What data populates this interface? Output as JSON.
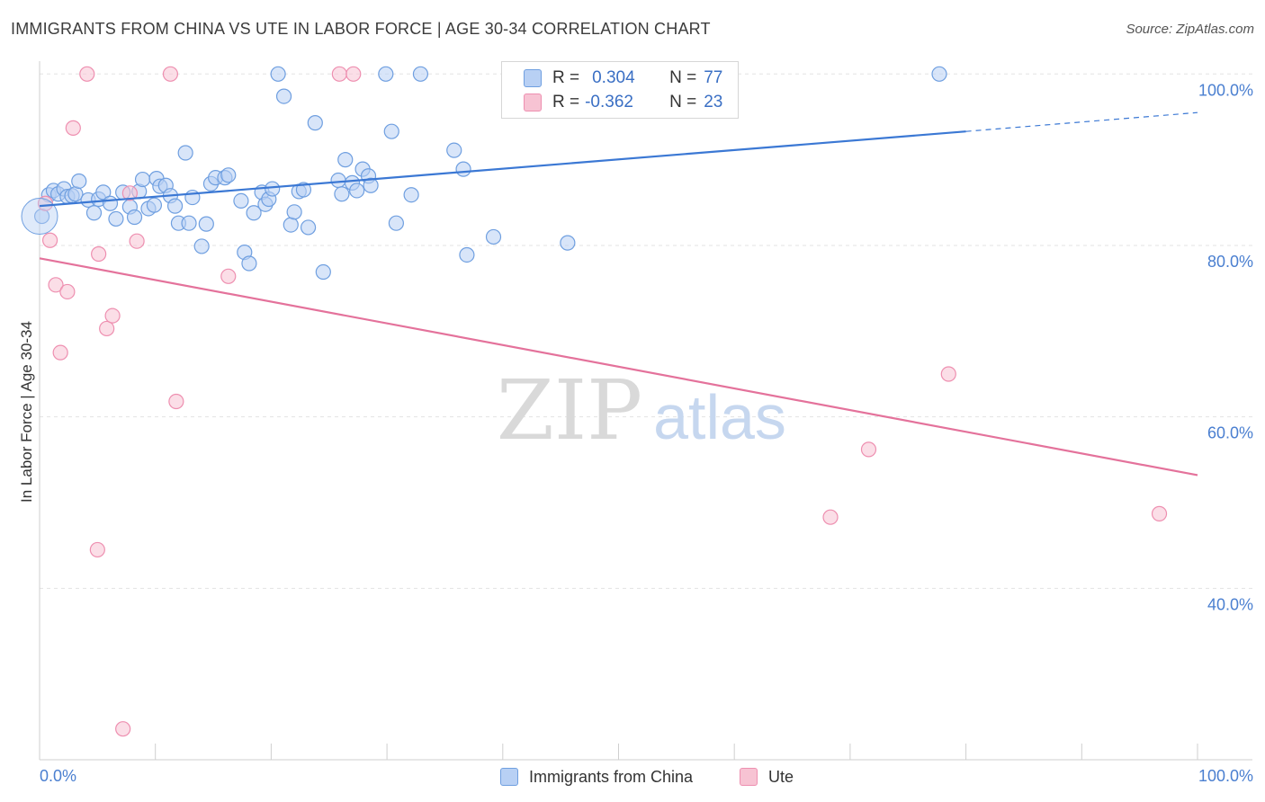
{
  "title": "IMMIGRANTS FROM CHINA VS UTE IN LABOR FORCE | AGE 30-34 CORRELATION CHART",
  "source": "Source: ZipAtlas.com",
  "watermark": {
    "zip": "ZIP",
    "atlas": "atlas"
  },
  "legend": {
    "r_label": "R =",
    "n_label": "N =",
    "rows": [
      {
        "r": "0.304",
        "n": "77",
        "fill": "#b8d0f4",
        "stroke": "#6f9fe0"
      },
      {
        "r": "-0.362",
        "n": "23",
        "fill": "#f7c3d3",
        "stroke": "#ee8fb0"
      }
    ]
  },
  "bottom_legend": [
    {
      "label": "Immigrants from China",
      "fill": "#b8d0f4",
      "stroke": "#6f9fe0"
    },
    {
      "label": "Ute",
      "fill": "#f7c3d3",
      "stroke": "#ee8fb0"
    }
  ],
  "chart_data": {
    "type": "scatter",
    "title": "IMMIGRANTS FROM CHINA VS UTE IN LABOR FORCE | AGE 30-34 CORRELATION CHART",
    "xlabel": "",
    "ylabel": "In Labor Force | Age 30-34",
    "xlim": [
      0,
      100
    ],
    "ylim": [
      20,
      101.5
    ],
    "x_tick_labels": [
      {
        "value": 0,
        "label": "0.0%"
      },
      {
        "value": 100,
        "label": "100.0%"
      }
    ],
    "y_tick_labels": [
      {
        "value": 100,
        "label": "100.0%"
      },
      {
        "value": 80,
        "label": "80.0%"
      },
      {
        "value": 60,
        "label": "60.0%"
      },
      {
        "value": 40,
        "label": "40.0%"
      }
    ],
    "series": [
      {
        "name": "Immigrants from China",
        "color": "#3b78d4",
        "fill": "#b8d0f4",
        "stroke": "#6f9fe0",
        "r": 0.304,
        "n": 77,
        "trend": {
          "x0": 0,
          "y0": 84.6,
          "x1": 80,
          "y1": 93.3,
          "x_dash_end": 100,
          "y_dash_end": 95.5
        },
        "points": [
          [
            0.2,
            83.4
          ],
          [
            0.8,
            85.9
          ],
          [
            1.2,
            86.4
          ],
          [
            1.6,
            86.0
          ],
          [
            2.1,
            86.6
          ],
          [
            2.4,
            85.7
          ],
          [
            2.8,
            85.8
          ],
          [
            3.1,
            86.0
          ],
          [
            3.4,
            87.5
          ],
          [
            4.2,
            85.3
          ],
          [
            4.7,
            83.8
          ],
          [
            5.1,
            85.4
          ],
          [
            5.5,
            86.2
          ],
          [
            6.1,
            84.9
          ],
          [
            6.6,
            83.1
          ],
          [
            7.2,
            86.2
          ],
          [
            7.8,
            84.5
          ],
          [
            8.2,
            83.3
          ],
          [
            8.6,
            86.3
          ],
          [
            8.9,
            87.7
          ],
          [
            9.4,
            84.3
          ],
          [
            9.9,
            84.7
          ],
          [
            10.1,
            87.8
          ],
          [
            10.4,
            86.9
          ],
          [
            10.9,
            87.0
          ],
          [
            11.3,
            85.8
          ],
          [
            11.7,
            84.6
          ],
          [
            12.0,
            82.6
          ],
          [
            12.6,
            90.8
          ],
          [
            12.9,
            82.6
          ],
          [
            13.2,
            85.6
          ],
          [
            14.0,
            79.9
          ],
          [
            14.4,
            82.5
          ],
          [
            14.8,
            87.2
          ],
          [
            15.2,
            87.9
          ],
          [
            16.0,
            87.9
          ],
          [
            16.3,
            88.2
          ],
          [
            17.4,
            85.2
          ],
          [
            17.7,
            79.2
          ],
          [
            18.1,
            77.9
          ],
          [
            18.5,
            83.8
          ],
          [
            19.2,
            86.2
          ],
          [
            19.5,
            84.8
          ],
          [
            19.8,
            85.4
          ],
          [
            20.1,
            86.6
          ],
          [
            20.6,
            100.0
          ],
          [
            21.1,
            97.4
          ],
          [
            21.7,
            82.4
          ],
          [
            22.0,
            83.9
          ],
          [
            22.4,
            86.3
          ],
          [
            22.8,
            86.5
          ],
          [
            23.2,
            82.1
          ],
          [
            23.8,
            94.3
          ],
          [
            24.5,
            76.9
          ],
          [
            25.8,
            87.6
          ],
          [
            26.1,
            86.0
          ],
          [
            26.4,
            90.0
          ],
          [
            27.0,
            87.3
          ],
          [
            27.4,
            86.4
          ],
          [
            27.9,
            88.9
          ],
          [
            28.4,
            88.1
          ],
          [
            28.6,
            87.0
          ],
          [
            29.9,
            100.0
          ],
          [
            30.4,
            93.3
          ],
          [
            30.8,
            82.6
          ],
          [
            32.1,
            85.9
          ],
          [
            32.9,
            100.0
          ],
          [
            35.8,
            91.1
          ],
          [
            36.6,
            88.9
          ],
          [
            36.9,
            78.9
          ],
          [
            39.2,
            81.0
          ],
          [
            45.6,
            80.3
          ],
          [
            77.7,
            100.0
          ]
        ]
      },
      {
        "name": "Ute",
        "color": "#e4729b",
        "fill": "#f7c3d3",
        "stroke": "#ee8fb0",
        "r": -0.362,
        "n": 23,
        "trend": {
          "x0": 0,
          "y0": 78.5,
          "x1": 100,
          "y1": 53.2
        },
        "points": [
          [
            0.5,
            84.9
          ],
          [
            0.9,
            80.6
          ],
          [
            1.4,
            75.4
          ],
          [
            1.8,
            67.5
          ],
          [
            2.4,
            74.6
          ],
          [
            2.9,
            93.7
          ],
          [
            4.1,
            100.0
          ],
          [
            5.0,
            44.5
          ],
          [
            5.1,
            79.0
          ],
          [
            5.8,
            70.3
          ],
          [
            6.3,
            71.8
          ],
          [
            7.2,
            23.6
          ],
          [
            7.8,
            86.1
          ],
          [
            8.4,
            80.5
          ],
          [
            11.3,
            100.0
          ],
          [
            11.8,
            61.8
          ],
          [
            16.3,
            76.4
          ],
          [
            25.9,
            100.0
          ],
          [
            27.1,
            100.0
          ],
          [
            68.3,
            48.3
          ],
          [
            71.6,
            56.2
          ],
          [
            78.5,
            65.0
          ],
          [
            96.7,
            48.7
          ]
        ]
      }
    ]
  }
}
